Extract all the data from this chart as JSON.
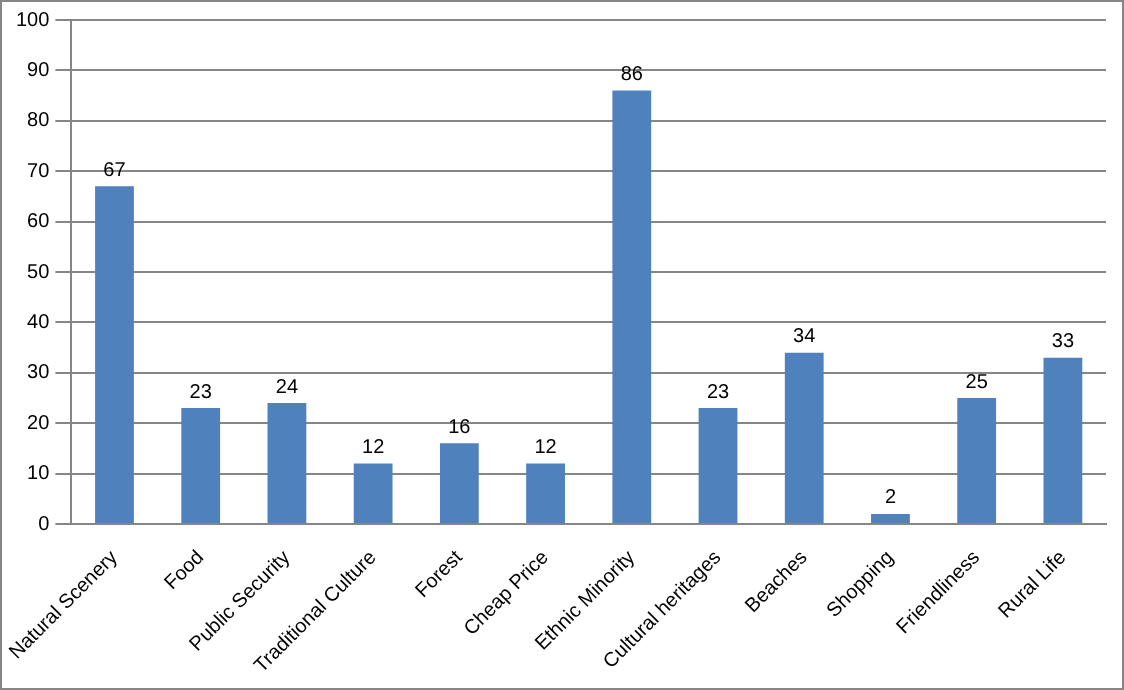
{
  "chart_data": {
    "type": "bar",
    "categories": [
      "Natural Scenery",
      "Food",
      "Public Security",
      "Traditional Culture",
      "Forest",
      "Cheap Price",
      "Ethnic Minority",
      "Cultural heritages",
      "Beaches",
      "Shopping",
      "Friendliness",
      "Rural Life"
    ],
    "values": [
      67,
      23,
      24,
      12,
      16,
      12,
      86,
      23,
      34,
      2,
      25,
      33
    ],
    "color": "#4f81bd",
    "ylim": [
      0,
      100
    ],
    "yticks": [
      0,
      10,
      20,
      30,
      40,
      50,
      60,
      70,
      80,
      90,
      100
    ],
    "grid": "y",
    "legend": false,
    "data_labels": true
  }
}
